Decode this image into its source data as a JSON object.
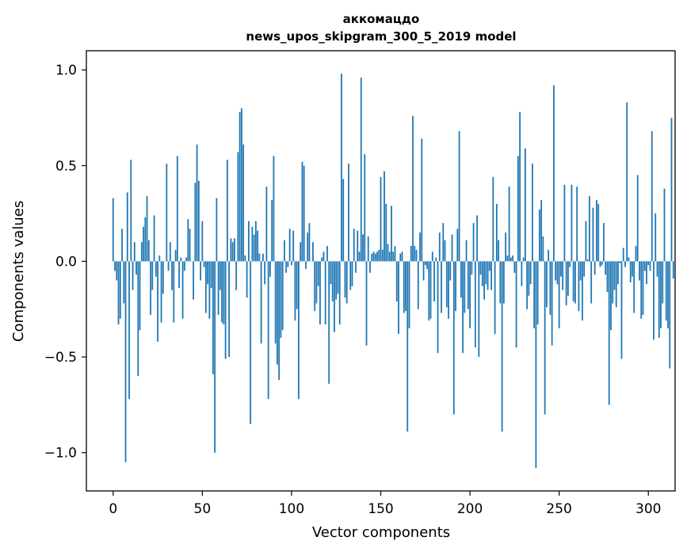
{
  "chart_data": {
    "type": "bar",
    "title_line1": "аккомацдо",
    "title_line2": "news_upos_skipgram_300_5_2019 model",
    "xlabel": "Vector components",
    "ylabel": "Components values",
    "xlim": [
      -15,
      315
    ],
    "ylim": [
      -1.2,
      1.1
    ],
    "xticks": [
      0,
      50,
      100,
      150,
      200,
      250,
      300
    ],
    "xtick_labels": [
      "0",
      "50",
      "100",
      "150",
      "200",
      "250",
      "300"
    ],
    "yticks": [
      1.0,
      0.5,
      0.0,
      -0.5,
      -1.0
    ],
    "ytick_labels": [
      "1.0",
      "0.5",
      "0.0",
      "−0.5",
      "−1.0"
    ],
    "bar_color": "#1f77b4",
    "values": [
      0.33,
      -0.05,
      -0.1,
      -0.33,
      -0.3,
      0.17,
      -0.22,
      -1.05,
      0.36,
      -0.72,
      0.53,
      -0.15,
      0.1,
      -0.07,
      -0.6,
      -0.36,
      0.1,
      0.18,
      0.23,
      0.34,
      0.11,
      -0.28,
      -0.15,
      0.24,
      -0.08,
      -0.42,
      0.03,
      -0.32,
      -0.17,
      0.0,
      0.51,
      -0.05,
      0.1,
      -0.15,
      -0.32,
      0.06,
      0.55,
      -0.14,
      0.02,
      -0.3,
      -0.05,
      0.02,
      0.22,
      0.17,
      0.0,
      -0.2,
      0.41,
      0.61,
      0.42,
      -0.1,
      0.21,
      -0.03,
      -0.27,
      -0.12,
      -0.3,
      -0.14,
      -0.59,
      -1.0,
      0.33,
      -0.28,
      -0.15,
      -0.32,
      -0.33,
      -0.51,
      0.53,
      -0.5,
      0.12,
      0.1,
      0.12,
      -0.15,
      0.57,
      0.78,
      0.8,
      0.61,
      0.03,
      -0.19,
      0.21,
      -0.85,
      0.18,
      0.14,
      0.21,
      0.16,
      0.04,
      -0.43,
      0.04,
      -0.12,
      0.39,
      -0.72,
      -0.08,
      0.32,
      0.55,
      -0.43,
      -0.54,
      -0.62,
      -0.4,
      -0.36,
      0.11,
      -0.06,
      -0.03,
      0.17,
      -0.02,
      0.16,
      -0.31,
      -0.25,
      -0.72,
      0.1,
      0.52,
      0.5,
      -0.04,
      0.15,
      0.2,
      0.0,
      0.1,
      -0.26,
      -0.22,
      -0.13,
      -0.33,
      0.02,
      0.05,
      -0.33,
      0.08,
      -0.64,
      -0.12,
      -0.21,
      -0.37,
      -0.2,
      -0.17,
      -0.33,
      0.98,
      0.43,
      -0.19,
      -0.22,
      0.51,
      -0.15,
      -0.13,
      0.17,
      -0.06,
      0.16,
      0.05,
      0.96,
      0.14,
      0.56,
      -0.44,
      0.13,
      -0.06,
      0.04,
      0.05,
      0.04,
      0.05,
      0.06,
      0.44,
      0.06,
      0.47,
      0.3,
      0.09,
      0.05,
      0.29,
      0.05,
      0.08,
      -0.21,
      -0.38,
      0.04,
      0.05,
      -0.27,
      -0.26,
      -0.89,
      -0.35,
      0.08,
      0.76,
      0.08,
      0.06,
      -0.25,
      0.15,
      0.64,
      -0.1,
      -0.02,
      -0.04,
      -0.31,
      -0.3,
      0.05,
      -0.21,
      0.02,
      -0.48,
      0.15,
      -0.27,
      0.2,
      0.11,
      -0.24,
      -0.3,
      -0.1,
      0.14,
      -0.8,
      -0.26,
      0.17,
      0.68,
      -0.19,
      -0.48,
      -0.27,
      0.11,
      -0.25,
      -0.35,
      -0.07,
      0.2,
      -0.45,
      0.24,
      -0.5,
      -0.07,
      -0.13,
      -0.2,
      -0.12,
      -0.15,
      -0.05,
      -0.15,
      0.44,
      -0.38,
      0.3,
      0.11,
      -0.22,
      -0.89,
      -0.22,
      0.15,
      0.03,
      0.39,
      0.02,
      0.03,
      -0.06,
      -0.45,
      0.55,
      0.78,
      -0.13,
      0.02,
      0.59,
      -0.25,
      -0.18,
      -0.12,
      0.51,
      -0.35,
      -1.08,
      -0.33,
      0.27,
      0.32,
      0.13,
      -0.8,
      -0.24,
      0.06,
      -0.28,
      -0.44,
      0.92,
      -0.1,
      -0.12,
      -0.35,
      -0.08,
      -0.15,
      0.4,
      -0.23,
      -0.18,
      -0.03,
      0.4,
      -0.21,
      -0.22,
      0.39,
      -0.26,
      -0.1,
      -0.31,
      -0.08,
      0.21,
      0.01,
      0.34,
      -0.22,
      0.28,
      -0.07,
      0.32,
      0.3,
      -0.03,
      -0.02,
      0.2,
      -0.07,
      -0.16,
      -0.75,
      -0.36,
      -0.22,
      -0.15,
      -0.24,
      -0.12,
      -0.01,
      -0.51,
      0.07,
      -0.03,
      0.83,
      0.02,
      -0.11,
      -0.08,
      -0.27,
      0.08,
      0.45,
      -0.1,
      -0.3,
      -0.28,
      -0.05,
      -0.12,
      -0.02,
      -0.05,
      0.68,
      -0.41,
      0.25,
      -0.08,
      -0.4,
      -0.35,
      -0.22,
      0.38,
      -0.31,
      -0.35,
      -0.56,
      0.75,
      -0.09
    ]
  }
}
